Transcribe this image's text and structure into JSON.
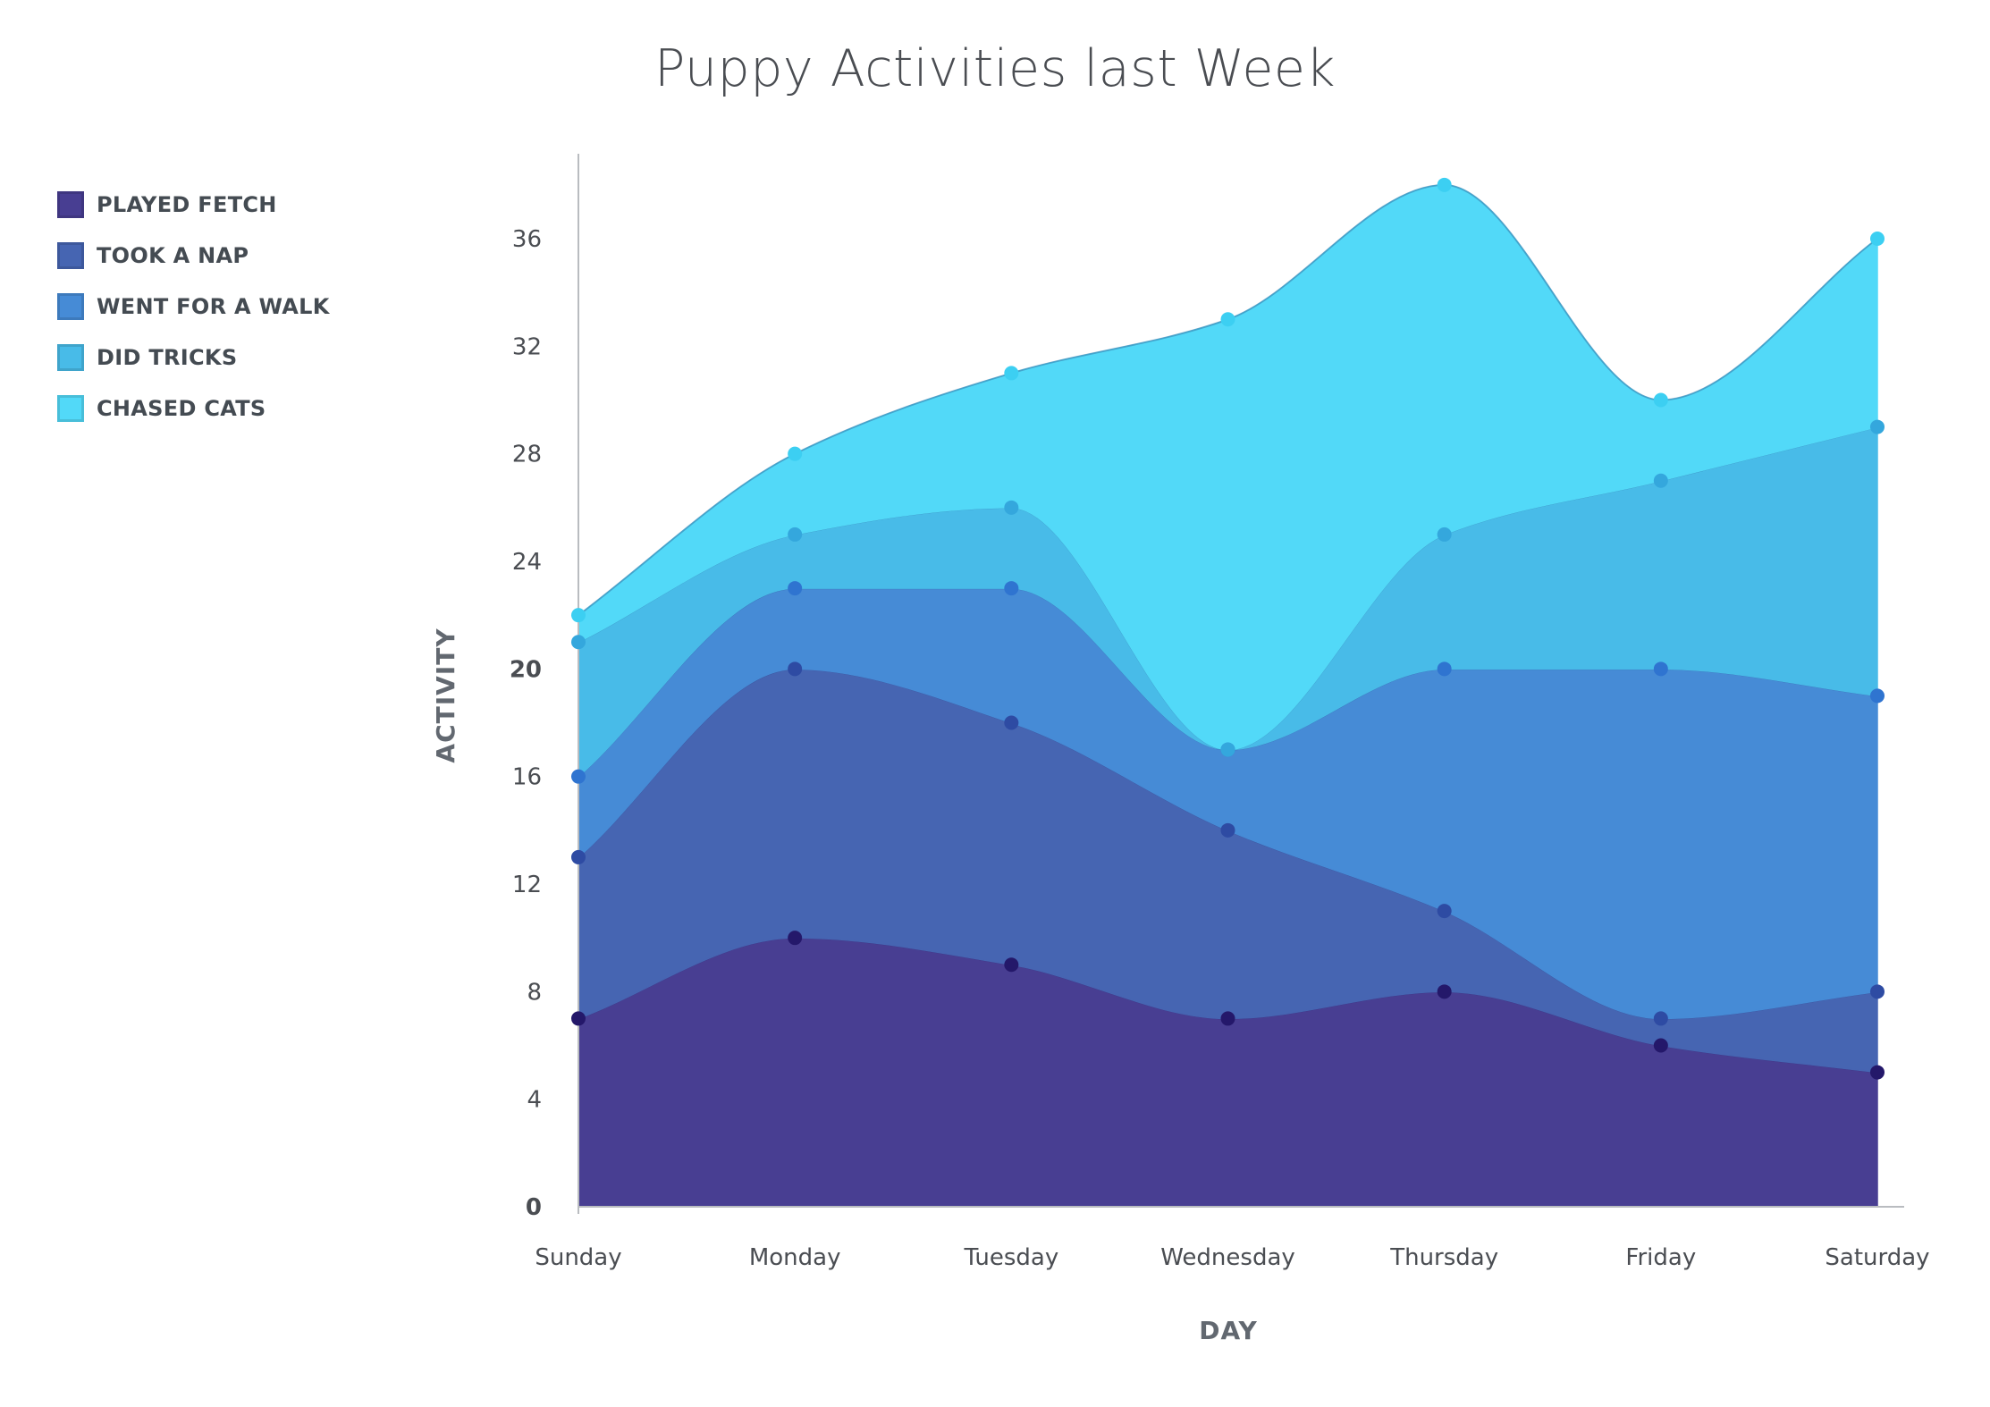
{
  "chart_data": {
    "type": "area",
    "stacked": true,
    "title": "Puppy Activities last Week",
    "xlabel": "DAY",
    "ylabel": "ACTIVITY",
    "categories": [
      "Sunday",
      "Monday",
      "Tuesday",
      "Wednesday",
      "Thursday",
      "Friday",
      "Saturday"
    ],
    "ylim": [
      0,
      39
    ],
    "yticks": [
      0,
      4,
      8,
      12,
      16,
      20,
      24,
      28,
      32,
      36
    ],
    "legend_position": "top-left",
    "series": [
      {
        "name": "PLAYED FETCH",
        "color": "#483e92",
        "values": [
          7,
          10,
          9,
          7,
          8,
          6,
          5
        ]
      },
      {
        "name": "TOOK A NAP",
        "color": "#4665b2",
        "values": [
          6,
          10,
          9,
          7,
          3,
          1,
          3
        ]
      },
      {
        "name": "WENT FOR A WALK",
        "color": "#468bd6",
        "values": [
          3,
          3,
          5,
          3,
          9,
          13,
          11
        ]
      },
      {
        "name": "DID TRICKS",
        "color": "#48bbe8",
        "values": [
          5,
          2,
          3,
          0,
          5,
          7,
          10
        ]
      },
      {
        "name": "CHASED CATS",
        "color": "#52d9f8",
        "values": [
          1,
          3,
          5,
          16,
          13,
          3,
          7
        ]
      }
    ]
  }
}
